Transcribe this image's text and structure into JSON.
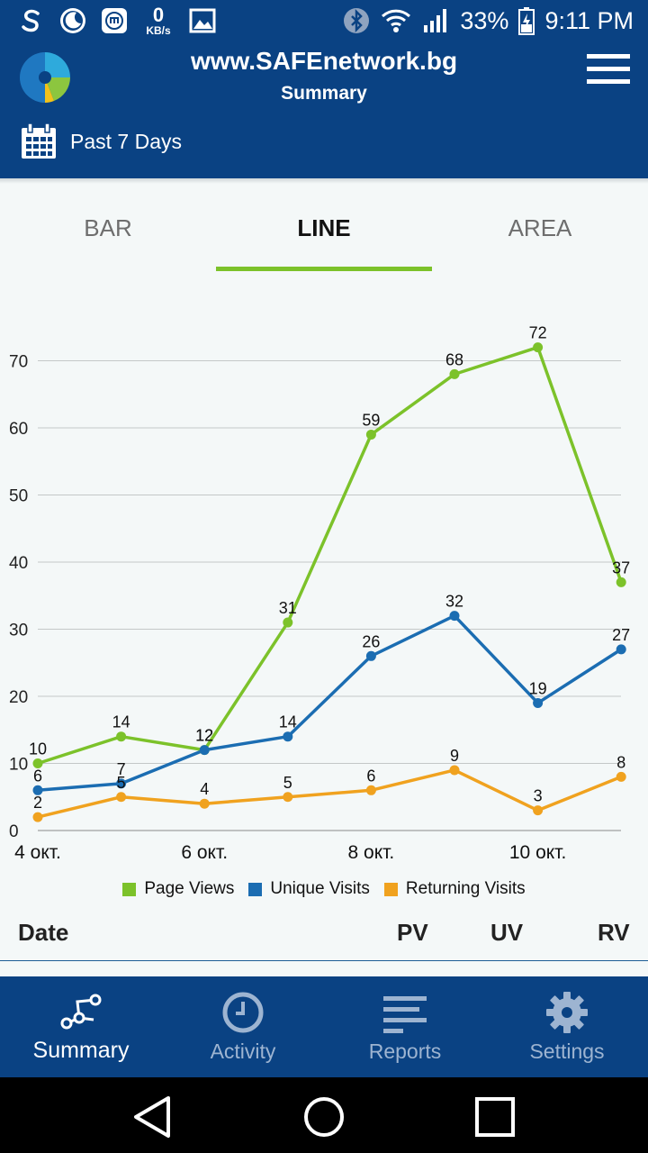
{
  "status_bar": {
    "kb_speed_value": "0",
    "kb_speed_unit": "KB/s",
    "battery": "33%",
    "time": "9:11 PM",
    "icons": [
      "s-app-icon",
      "moon-icon",
      "mi-icon",
      "image-icon",
      "bluetooth-icon",
      "wifi-icon",
      "signal-icon",
      "battery-icon"
    ]
  },
  "header": {
    "site": "www.SAFEnetwork.bg",
    "subtitle": "Summary",
    "date_range": "Past 7 Days"
  },
  "tabs": [
    {
      "label": "BAR",
      "active": false
    },
    {
      "label": "LINE",
      "active": true
    },
    {
      "label": "AREA",
      "active": false
    }
  ],
  "chart_data": {
    "type": "line",
    "x": [
      "4 окт.",
      "5 окт.",
      "6 окт.",
      "7 окт.",
      "8 окт.",
      "9 окт.",
      "10 окт.",
      "11 окт."
    ],
    "x_tick_labels": [
      "4 окт.",
      "6 окт.",
      "8 окт.",
      "10 окт."
    ],
    "y_ticks": [
      0,
      10,
      20,
      30,
      40,
      50,
      60,
      70
    ],
    "ylim": [
      0,
      70
    ],
    "grid": true,
    "legend_position": "bottom",
    "series": [
      {
        "name": "Page Views",
        "color": "#7cc22a",
        "values": [
          10,
          14,
          12,
          31,
          59,
          68,
          72,
          37
        ]
      },
      {
        "name": "Unique Visits",
        "color": "#1b6db2",
        "values": [
          6,
          7,
          12,
          14,
          26,
          32,
          19,
          27
        ]
      },
      {
        "name": "Returning Visits",
        "color": "#f0a21f",
        "values": [
          2,
          5,
          4,
          5,
          6,
          9,
          3,
          8
        ]
      }
    ]
  },
  "table_header": {
    "date": "Date",
    "pv": "PV",
    "uv": "UV",
    "rv": "RV"
  },
  "bottom_nav": [
    {
      "label": "Summary",
      "icon": "summary-network-icon",
      "active": true
    },
    {
      "label": "Activity",
      "icon": "clock-icon",
      "active": false
    },
    {
      "label": "Reports",
      "icon": "reports-lines-icon",
      "active": false
    },
    {
      "label": "Settings",
      "icon": "gear-icon",
      "active": false
    }
  ],
  "colors": {
    "primary": "#0a4283",
    "accent": "#7cc22a",
    "background": "#f4f8f8"
  }
}
